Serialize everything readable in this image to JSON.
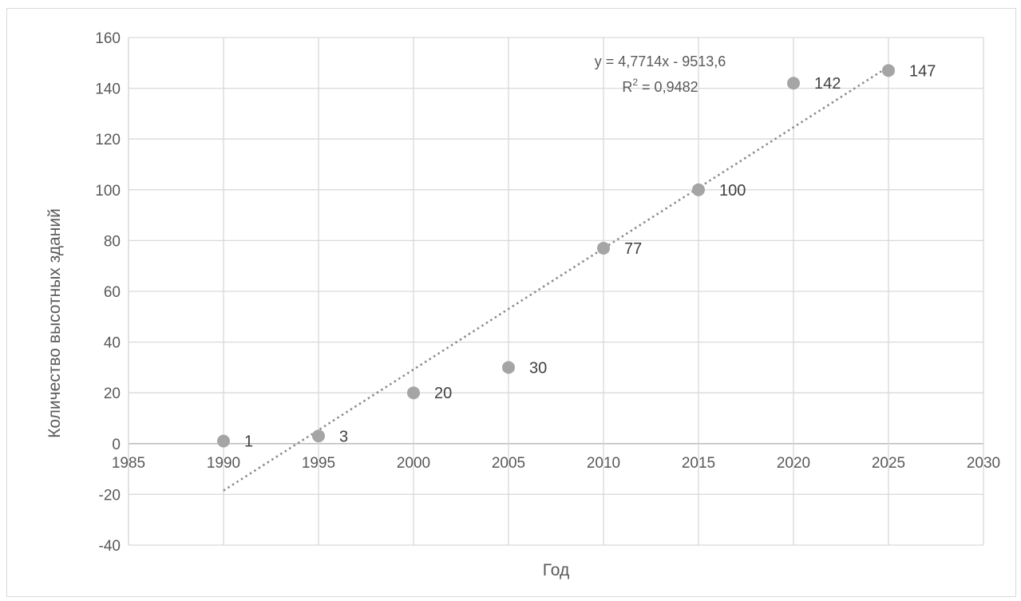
{
  "chart_data": {
    "type": "scatter",
    "title": "",
    "xlabel": "Год",
    "ylabel": "Количество высотных зданий",
    "xlim": [
      1985,
      2030
    ],
    "ylim": [
      -40,
      160
    ],
    "xticks": [
      1985,
      1990,
      1995,
      2000,
      2005,
      2010,
      2015,
      2020,
      2025,
      2030
    ],
    "yticks": [
      -40,
      -20,
      0,
      20,
      40,
      60,
      80,
      100,
      120,
      140,
      160
    ],
    "grid": true,
    "legend": "none",
    "x": [
      1990,
      1995,
      2000,
      2005,
      2010,
      2015,
      2020,
      2025
    ],
    "y": [
      1,
      3,
      20,
      30,
      77,
      100,
      142,
      147
    ],
    "data_labels": [
      "1",
      "3",
      "20",
      "30",
      "77",
      "100",
      "142",
      "147"
    ],
    "point_color": "#a5a5a5",
    "trendline": {
      "type": "linear",
      "slope": 4.7714,
      "intercept": -9513.6,
      "x_range": [
        1990,
        2025
      ],
      "equation_text": "y = 4,7714x - 9513,6",
      "r2_text_prefix": "R",
      "r2_text_sup": "2",
      "r2_text_value": " = 0,9482",
      "color": "#8c8c8c"
    }
  }
}
